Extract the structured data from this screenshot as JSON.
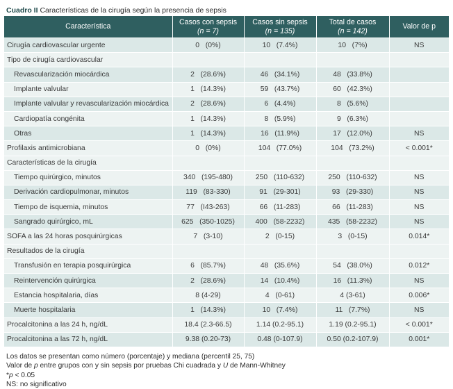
{
  "caption": {
    "label": "Cuadro II",
    "text": "Características de la cirugía según la presencia de sepsis"
  },
  "headers": {
    "col1": "Característica",
    "col2_title": "Casos con sepsis",
    "col2_n": "(n = 7)",
    "col3_title": "Casos sin sepsis",
    "col3_n": "(n = 135)",
    "col4_title": "Total de casos",
    "col4_n": "(n = 142)",
    "col5": "Valor de p"
  },
  "rows": [
    {
      "label": "Cirugía cardiovascular urgente",
      "c1": "0   (0%)",
      "c2": "10   (7.4%)",
      "c3": "10   (7%)",
      "p": "NS",
      "kind": "main"
    },
    {
      "label": "Tipo de cirugía cardiovascular",
      "c1": "",
      "c2": "",
      "c3": "",
      "p": "",
      "kind": "section"
    },
    {
      "label": "Revascularización miocárdica",
      "c1": "2   (28.6%)",
      "c2": "46   (34.1%)",
      "c3": "48   (33.8%)",
      "p": "",
      "kind": "sub"
    },
    {
      "label": "Implante valvular",
      "c1": "1   (14.3%)",
      "c2": "59   (43.7%)",
      "c3": "60   (42.3%)",
      "p": "",
      "kind": "sub"
    },
    {
      "label": "Implante valvular y revascularización miocárdica",
      "c1": "2   (28.6%)",
      "c2": "6   (4.4%)",
      "c3": "8   (5.6%)",
      "p": "",
      "kind": "sub"
    },
    {
      "label": "Cardiopatía congénita",
      "c1": "1   (14.3%)",
      "c2": "8   (5.9%)",
      "c3": "9   (6.3%)",
      "p": "",
      "kind": "sub"
    },
    {
      "label": "Otras",
      "c1": "1   (14.3%)",
      "c2": "16   (11.9%)",
      "c3": "17   (12.0%)",
      "p": "NS",
      "kind": "sub"
    },
    {
      "label": "Profilaxis antimicrobiana",
      "c1": "0   (0%)",
      "c2": "104   (77.0%)",
      "c3": "104   (73.2%)",
      "p": "< 0.001*",
      "kind": "main"
    },
    {
      "label": "Características de la cirugía",
      "c1": "",
      "c2": "",
      "c3": "",
      "p": "",
      "kind": "section"
    },
    {
      "label": "Tiempo quirúrgico, minutos",
      "c1": "340   (195-480)",
      "c2": "250   (110-632)",
      "c3": "250   (110-632)",
      "p": "NS",
      "kind": "sub"
    },
    {
      "label": "Derivación cardiopulmonar, minutos",
      "c1": "119   (83-330)",
      "c2": "91   (29-301)",
      "c3": "93   (29-330)",
      "p": "NS",
      "kind": "sub"
    },
    {
      "label": "Tiempo de isquemia, minutos",
      "c1": "77   (I43-263)",
      "c2": "66   (11-283)",
      "c3": "66   (11-283)",
      "p": "NS",
      "kind": "sub"
    },
    {
      "label": "Sangrado quirúrgico, mL",
      "c1": "625   (350-1025)",
      "c2": "400   (58-2232)",
      "c3": "435   (58-2232)",
      "p": "NS",
      "kind": "sub"
    },
    {
      "label": "SOFA a las 24 horas posquirúrgicas",
      "c1": "7   (3-10)",
      "c2": "2   (0-15)",
      "c3": "3   (0-15)",
      "p": "0.014*",
      "kind": "main"
    },
    {
      "label": "Resultados de la cirugía",
      "c1": "",
      "c2": "",
      "c3": "",
      "p": "",
      "kind": "section"
    },
    {
      "label": "Transfusión en terapia posquirúrgica",
      "c1": "6   (85.7%)",
      "c2": "48   (35.6%)",
      "c3": "54   (38.0%)",
      "p": "0.012*",
      "kind": "sub"
    },
    {
      "label": "Reintervención quirúrgica",
      "c1": "2   (28.6%)",
      "c2": "14   (10.4%)",
      "c3": "16   (11.3%)",
      "p": "NS",
      "kind": "sub"
    },
    {
      "label": "Estancia hospitalaria, días",
      "c1": "8 (4-29)",
      "c2": "4   (0-61)",
      "c3": "4 (3-61)",
      "p": "0.006*",
      "kind": "sub"
    },
    {
      "label": "Muerte hospitalaria",
      "c1": "1   (14.3%)",
      "c2": "10   (7.4%)",
      "c3": "11   (7.7%)",
      "p": "NS",
      "kind": "sub"
    },
    {
      "label": "Procalcitonina a las 24 h, ng/dL",
      "c1": "18.4 (2.3-66.5)",
      "c2": "1.14 (0.2-95.1)",
      "c3": "1.19 (0.2-95.1)",
      "p": "< 0.001*",
      "kind": "main"
    },
    {
      "label": "Procalcitonina a las 72 h, ng/dL",
      "c1": "9.38 (0.20-73)",
      "c2": "0.48 (0-107.9)",
      "c3": "0.50 (0.2-107.9)",
      "p": "0.001*",
      "kind": "main"
    }
  ],
  "footnotes": {
    "line1": "Los datos se presentan como número (porcentaje) y mediana (percentil 25, 75)",
    "line2_a": "Valor de ",
    "line2_p": "p",
    "line2_b": " entre grupos con y sin sepsis por pruebas Chi cuadrada y ",
    "line2_u": "U",
    "line2_c": " de Mann-Whitney",
    "line3_mark": "*",
    "line3_p": "p",
    "line3_rest": " < 0.05",
    "line4": "NS: no significativo"
  },
  "colors": {
    "header_bg": "#2f5f60",
    "row_dark": "#dbe8e7",
    "row_light": "#edf3f2"
  }
}
